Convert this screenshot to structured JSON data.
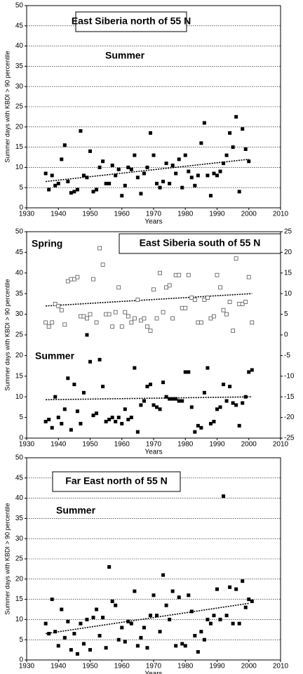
{
  "chart_data": [
    {
      "type": "scatter",
      "title": "East Siberia north of 55 N",
      "annotations": [
        "Summer"
      ],
      "ylabel": "Summer days with KBDI > 90 percentile",
      "xlabel": "Years",
      "x": [
        1936,
        1937,
        1938,
        1939,
        1940,
        1941,
        1942,
        1943,
        1944,
        1945,
        1946,
        1947,
        1948,
        1949,
        1950,
        1951,
        1952,
        1953,
        1954,
        1955,
        1956,
        1957,
        1958,
        1959,
        1960,
        1961,
        1962,
        1963,
        1964,
        1965,
        1966,
        1967,
        1968,
        1969,
        1970,
        1971,
        1972,
        1973,
        1974,
        1975,
        1976,
        1977,
        1978,
        1979,
        1980,
        1981,
        1982,
        1983,
        1984,
        1985,
        1986,
        1987,
        1988,
        1989,
        1990,
        1991,
        1992,
        1993,
        1994,
        1995,
        1996,
        1997,
        1998,
        1999,
        2000
      ],
      "series": [
        {
          "marker": "filled",
          "color": "#000000",
          "values": [
            8.5,
            4.5,
            8,
            5.5,
            6,
            12,
            15.5,
            6.5,
            3.7,
            4,
            4.5,
            19,
            8,
            7.5,
            14,
            4,
            4.5,
            10,
            11.5,
            6,
            6,
            10.5,
            8,
            9.5,
            3,
            5.5,
            10,
            9.5,
            13,
            7.5,
            3.5,
            8.5,
            10,
            18.5,
            13,
            6,
            5,
            6.5,
            11,
            6,
            10.5,
            8.5,
            12,
            5,
            13,
            9,
            7.5,
            5.5,
            8,
            16,
            21,
            8,
            3,
            8.5,
            8,
            9,
            11,
            13,
            18.5,
            15,
            22.5,
            4,
            19.5,
            14.5,
            11.5
          ]
        }
      ],
      "trends": [
        {
          "x": [
            1936,
            2000
          ],
          "values": [
            6.5,
            12
          ]
        }
      ],
      "xlim": [
        1930,
        2010
      ],
      "xticks": [
        1930,
        1940,
        1950,
        1960,
        1970,
        1980,
        1990,
        2000,
        2010
      ],
      "ylim": [
        0,
        50
      ],
      "yticks": [
        0,
        5,
        10,
        15,
        20,
        25,
        30,
        35,
        40,
        45,
        50
      ],
      "grid": true
    },
    {
      "type": "scatter",
      "title": "East Siberia south of 55 N",
      "annotations": [
        "Spring",
        "Summer"
      ],
      "ylabel": "Summer days with KBDI > 90 percentile",
      "xlabel": "Years",
      "x": [
        1936,
        1937,
        1938,
        1939,
        1940,
        1941,
        1942,
        1943,
        1944,
        1945,
        1946,
        1947,
        1948,
        1949,
        1950,
        1951,
        1952,
        1953,
        1954,
        1955,
        1956,
        1957,
        1958,
        1959,
        1960,
        1961,
        1962,
        1963,
        1964,
        1965,
        1966,
        1967,
        1968,
        1969,
        1970,
        1971,
        1972,
        1973,
        1974,
        1975,
        1976,
        1977,
        1978,
        1979,
        1980,
        1981,
        1982,
        1983,
        1984,
        1985,
        1986,
        1987,
        1988,
        1989,
        1990,
        1991,
        1992,
        1993,
        1994,
        1995,
        1996,
        1997,
        1998,
        1999,
        2000,
        2001
      ],
      "series": [
        {
          "marker": "open",
          "color": "#555555",
          "axis": "y2",
          "values": [
            3,
            2,
            3,
            7.5,
            7,
            6,
            2.5,
            13,
            13.5,
            13.5,
            14,
            4.5,
            4.5,
            4,
            5,
            13.5,
            3,
            21,
            17,
            5,
            5,
            2,
            5.5,
            11.5,
            2,
            5.5,
            4.5,
            3,
            4,
            8.5,
            3.5,
            4,
            2,
            1,
            11,
            4,
            15,
            5.5,
            11.5,
            12,
            4,
            14.5,
            14.5,
            6.5,
            6.5,
            14.5,
            9,
            8.5,
            3,
            3,
            8.5,
            9,
            4,
            4.5,
            14.5,
            11.5,
            6,
            5,
            8,
            1,
            18.5,
            7.5,
            7.5,
            8,
            14,
            3
          ]
        },
        {
          "marker": "filled",
          "color": "#000000",
          "values": [
            4,
            4.5,
            2.5,
            10,
            5,
            3.5,
            7,
            14.5,
            2,
            13,
            6.5,
            3.5,
            11,
            25,
            18.5,
            5.5,
            6,
            19,
            12.5,
            4,
            4.5,
            5,
            4,
            5,
            3.5,
            7,
            4.5,
            5,
            17,
            1.5,
            8,
            9,
            12.5,
            13,
            8,
            7.5,
            7,
            13.5,
            10,
            9.5,
            9.5,
            9.5,
            9,
            9,
            16,
            16,
            7.5,
            1.5,
            3,
            2.5,
            11,
            17,
            3.5,
            4,
            7,
            7.5,
            13,
            9,
            12.5,
            8.5,
            8,
            3,
            8.5,
            10,
            16,
            16.5
          ]
        }
      ],
      "trends": [
        {
          "x": [
            1936,
            2001
          ],
          "values": [
            7,
            10
          ],
          "axis": "y2"
        },
        {
          "x": [
            1936,
            2001
          ],
          "values": [
            9.3,
            10
          ]
        }
      ],
      "xlim": [
        1930,
        2010
      ],
      "xticks": [
        1930,
        1940,
        1950,
        1960,
        1970,
        1980,
        1990,
        2000,
        2010
      ],
      "ylim": [
        0,
        50
      ],
      "yticks": [
        0,
        5,
        10,
        15,
        20,
        25,
        30,
        35,
        40,
        45,
        50
      ],
      "y2lim": [
        -25,
        25
      ],
      "y2ticks": [
        -25,
        -20,
        -15,
        -10,
        -5,
        0,
        5,
        10,
        15,
        20,
        25
      ],
      "grid": false
    },
    {
      "type": "scatter",
      "title": "Far East north of 55 N",
      "annotations": [
        "Summer"
      ],
      "ylabel": "Summer days with KBDI > 90 percentile",
      "xlabel": "Years",
      "x": [
        1936,
        1937,
        1938,
        1939,
        1940,
        1941,
        1942,
        1943,
        1944,
        1945,
        1946,
        1947,
        1948,
        1949,
        1950,
        1951,
        1952,
        1953,
        1954,
        1955,
        1956,
        1957,
        1958,
        1959,
        1960,
        1961,
        1962,
        1963,
        1964,
        1965,
        1966,
        1967,
        1968,
        1969,
        1970,
        1971,
        1972,
        1973,
        1974,
        1975,
        1976,
        1977,
        1978,
        1979,
        1980,
        1981,
        1982,
        1983,
        1984,
        1985,
        1986,
        1987,
        1988,
        1989,
        1990,
        1991,
        1992,
        1993,
        1994,
        1995,
        1996,
        1997,
        1998,
        1999,
        2000,
        2001
      ],
      "series": [
        {
          "marker": "filled",
          "color": "#000000",
          "values": [
            9,
            6.5,
            15,
            7,
            3.5,
            12.5,
            5.5,
            9.5,
            2.5,
            6.5,
            1.5,
            9,
            4,
            10,
            2.5,
            10.5,
            12.5,
            6,
            10.5,
            3,
            23,
            14.5,
            13.5,
            5,
            8,
            4.5,
            9.5,
            9,
            17,
            3.5,
            5.5,
            8,
            3,
            11,
            16,
            11,
            7,
            21,
            13.5,
            10,
            17,
            3.5,
            15.5,
            4,
            3.5,
            16,
            12,
            6,
            2,
            7,
            5,
            10,
            9,
            11,
            17.5,
            10,
            40.5,
            11,
            18,
            9,
            17.5,
            9,
            19.5,
            13,
            15,
            14.5
          ]
        }
      ],
      "trends": [
        {
          "x": [
            1936,
            2000
          ],
          "values": [
            6.5,
            14
          ]
        }
      ],
      "xlim": [
        1930,
        2010
      ],
      "xticks": [
        1930,
        1940,
        1950,
        1960,
        1970,
        1980,
        1990,
        2000,
        2010
      ],
      "ylim": [
        0,
        50
      ],
      "yticks": [
        0,
        5,
        10,
        15,
        20,
        25,
        30,
        35,
        40,
        45,
        50
      ],
      "grid": true
    }
  ]
}
